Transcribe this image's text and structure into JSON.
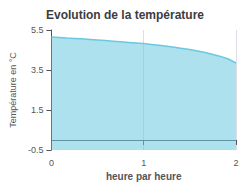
{
  "chart_data": {
    "type": "area",
    "title": "Evolution de la température",
    "x_label": "heure par heure",
    "y_label": "Température en °C",
    "x": [
      0,
      0.0833,
      0.1667,
      0.25,
      0.3333,
      0.4167,
      0.5,
      0.5833,
      0.6667,
      0.75,
      0.8333,
      0.9167,
      1.0,
      1.0833,
      1.1667,
      1.25,
      1.3333,
      1.4167,
      1.5,
      1.5833,
      1.6667,
      1.75,
      1.8333,
      1.9167,
      2.0
    ],
    "values": [
      5.15,
      5.13,
      5.1,
      5.08,
      5.06,
      5.03,
      5.0,
      4.97,
      4.94,
      4.91,
      4.88,
      4.85,
      4.82,
      4.78,
      4.74,
      4.69,
      4.64,
      4.58,
      4.52,
      4.45,
      4.37,
      4.28,
      4.18,
      4.05,
      3.85
    ],
    "color": "#6bc8e0",
    "xlim": [
      0,
      2
    ],
    "xticks": [
      0,
      1,
      2
    ],
    "ylim": [
      -0.5,
      5.5
    ],
    "yticks": [
      -0.5,
      1.5,
      3.5,
      5.5
    ],
    "grid": "x"
  }
}
